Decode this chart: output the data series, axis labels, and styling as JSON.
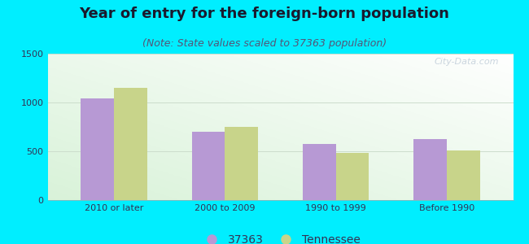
{
  "title": "Year of entry for the foreign-born population",
  "subtitle": "(Note: State values scaled to 37363 population)",
  "categories": [
    "2010 or later",
    "2000 to 2009",
    "1990 to 1999",
    "Before 1990"
  ],
  "values_city": [
    1040,
    700,
    575,
    625
  ],
  "values_state": [
    1150,
    750,
    480,
    510
  ],
  "color_city": "#b799d4",
  "color_state": "#c8d48a",
  "legend_city": "37363",
  "legend_state": "Tennessee",
  "ylim": [
    0,
    1500
  ],
  "yticks": [
    0,
    500,
    1000,
    1500
  ],
  "background_outer": "#00eeff",
  "bar_width": 0.3,
  "title_fontsize": 13,
  "subtitle_fontsize": 9,
  "tick_fontsize": 8,
  "legend_fontsize": 10,
  "title_color": "#1a1a2e",
  "subtitle_color": "#555577"
}
